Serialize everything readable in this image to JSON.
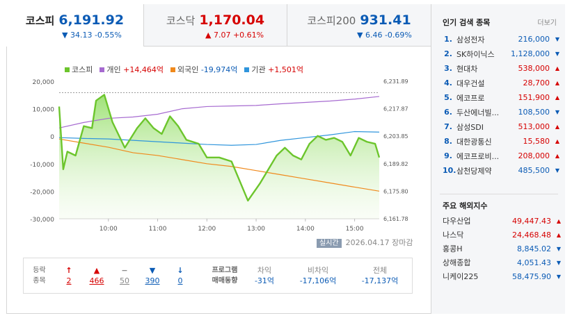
{
  "tabs": [
    {
      "name": "코스피",
      "value": "6,191.92",
      "change": "▼ 34.13 -0.55%",
      "dir": "down"
    },
    {
      "name": "코스닥",
      "value": "1,170.04",
      "change": "▲ 7.07 +0.61%",
      "dir": "up"
    },
    {
      "name": "코스피200",
      "value": "931.41",
      "change": "▼ 6.46 -0.69%",
      "dir": "down"
    }
  ],
  "legend": [
    {
      "label": "코스피",
      "value": "",
      "color": "#6cc52c"
    },
    {
      "label": "개인",
      "value": "+14,464억",
      "color": "#a66ad0"
    },
    {
      "label": "외국인",
      "value": "-19,974억",
      "color": "#f0891c"
    },
    {
      "label": "기관",
      "value": "+1,501억",
      "color": "#2f95dc"
    }
  ],
  "chart_data": {
    "type": "line",
    "x_ticks": [
      "10:00",
      "11:00",
      "12:00",
      "13:00",
      "14:00",
      "15:00"
    ],
    "y_left_ticks": [
      "20,000",
      "10,000",
      "0",
      "-10,000",
      "-20,000",
      "-30,000"
    ],
    "y_left_range": [
      -30000,
      20000
    ],
    "y_right_ticks": [
      "6,231.89",
      "6,217.87",
      "6,203.85",
      "6,189.82",
      "6,175.80",
      "6,161.78"
    ],
    "y_right_range": [
      6161.78,
      6231.89
    ],
    "reference_value": 6226.05,
    "x_range": [
      "09:00",
      "15:30"
    ],
    "series": [
      {
        "name": "코스피",
        "color": "#6cc52c",
        "x": [
          "09:00",
          "09:05",
          "09:10",
          "09:20",
          "09:30",
          "09:40",
          "09:45",
          "09:55",
          "10:05",
          "10:20",
          "10:35",
          "10:45",
          "10:55",
          "11:05",
          "11:15",
          "11:25",
          "11:35",
          "11:50",
          "12:00",
          "12:15",
          "12:30",
          "12:40",
          "12:50",
          "13:00",
          "13:05",
          "13:15",
          "13:25",
          "13:35",
          "13:45",
          "13:55",
          "14:05",
          "14:15",
          "14:25",
          "14:35",
          "14:45",
          "14:55",
          "15:05",
          "15:15",
          "15:25",
          "15:30"
        ],
        "y": [
          6219,
          6187,
          6196,
          6194,
          6209,
          6208,
          6222,
          6225,
          6211,
          6198,
          6208,
          6213,
          6208,
          6205,
          6214,
          6209,
          6202,
          6200,
          6193,
          6193,
          6191,
          6181,
          6171,
          6177,
          6180,
          6187,
          6194,
          6198,
          6194,
          6192,
          6200,
          6204,
          6202,
          6203,
          6201,
          6194,
          6203,
          6201,
          6200,
          6193
        ]
      },
      {
        "name": "개인",
        "color": "#a66ad0",
        "x": [
          "09:00",
          "09:30",
          "10:00",
          "10:30",
          "11:00",
          "11:30",
          "12:00",
          "12:30",
          "13:00",
          "13:30",
          "14:00",
          "14:30",
          "15:00",
          "15:30"
        ],
        "y": [
          3000,
          5000,
          6500,
          7000,
          8000,
          10000,
          10800,
          11000,
          11200,
          11800,
          12300,
          12800,
          13500,
          14464
        ]
      },
      {
        "name": "외국인",
        "color": "#f0891c",
        "x": [
          "09:00",
          "09:30",
          "10:00",
          "10:30",
          "11:00",
          "11:30",
          "12:00",
          "12:30",
          "13:00",
          "13:30",
          "14:00",
          "14:30",
          "15:00",
          "15:30"
        ],
        "y": [
          -1000,
          -2500,
          -4000,
          -6000,
          -7000,
          -8500,
          -10000,
          -11000,
          -12500,
          -14000,
          -15500,
          -17000,
          -18500,
          -19974
        ]
      },
      {
        "name": "기관",
        "color": "#2f95dc",
        "x": [
          "09:00",
          "09:30",
          "10:00",
          "10:30",
          "11:00",
          "11:30",
          "12:00",
          "12:30",
          "13:00",
          "13:30",
          "14:00",
          "14:30",
          "15:00",
          "15:30"
        ],
        "y": [
          -500,
          -800,
          -1000,
          -1500,
          -2000,
          -2500,
          -3000,
          -3300,
          -3000,
          -1500,
          -500,
          500,
          1700,
          1501
        ]
      }
    ]
  },
  "stamp": {
    "badge": "실시간",
    "text": "2026.04.17 장마감"
  },
  "stats": {
    "label_top": "등락",
    "label_bottom": "종목",
    "cols": [
      {
        "icon": "↑",
        "value": "2",
        "dir": "up"
      },
      {
        "icon": "▲",
        "value": "466",
        "dir": "up"
      },
      {
        "icon": "−",
        "value": "50",
        "dir": "flat"
      },
      {
        "icon": "▼",
        "value": "390",
        "dir": "down"
      },
      {
        "icon": "↓",
        "value": "0",
        "dir": "down"
      }
    ],
    "program_top": "프로그램",
    "program_bottom": "매매동향",
    "program": [
      {
        "head": "차익",
        "value": "-31억"
      },
      {
        "head": "비차익",
        "value": "-17,106억"
      },
      {
        "head": "전체",
        "value": "-17,137억"
      }
    ]
  },
  "right": {
    "popular_title": "인기 검색 종목",
    "more": "더보기",
    "popular": [
      {
        "rank": "1.",
        "name": "삼성전자",
        "price": "216,000",
        "dir": "down"
      },
      {
        "rank": "2.",
        "name": "SK하이닉스",
        "price": "1,128,000",
        "dir": "down"
      },
      {
        "rank": "3.",
        "name": "현대차",
        "price": "538,000",
        "dir": "up"
      },
      {
        "rank": "4.",
        "name": "대우건설",
        "price": "28,700",
        "dir": "up"
      },
      {
        "rank": "5.",
        "name": "에코프로",
        "price": "151,900",
        "dir": "up"
      },
      {
        "rank": "6.",
        "name": "두산에너빌...",
        "price": "108,500",
        "dir": "down"
      },
      {
        "rank": "7.",
        "name": "삼성SDI",
        "price": "513,000",
        "dir": "up"
      },
      {
        "rank": "8.",
        "name": "대한광통신",
        "price": "15,580",
        "dir": "up"
      },
      {
        "rank": "9.",
        "name": "에코프로비...",
        "price": "208,000",
        "dir": "up"
      },
      {
        "rank": "10.",
        "name": "삼천당제약",
        "price": "485,500",
        "dir": "down"
      }
    ],
    "global_title": "주요 해외지수",
    "global": [
      {
        "name": "다우산업",
        "value": "49,447.43",
        "dir": "up"
      },
      {
        "name": "나스닥",
        "value": "24,468.48",
        "dir": "up"
      },
      {
        "name": "홍콩H",
        "value": "8,845.02",
        "dir": "down"
      },
      {
        "name": "상해종합",
        "value": "4,051.43",
        "dir": "down"
      },
      {
        "name": "니케이225",
        "value": "58,475.90",
        "dir": "down"
      }
    ]
  }
}
